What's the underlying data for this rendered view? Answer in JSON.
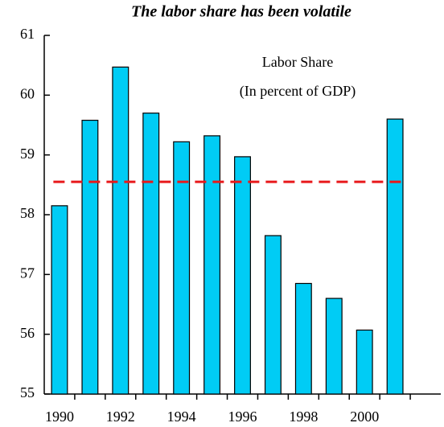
{
  "chart_data": {
    "type": "bar",
    "title": "The labor share has been volatile",
    "annotation": [
      "Labor Share",
      "(In percent of GDP)"
    ],
    "categories": [
      "1990",
      null,
      "1992",
      null,
      "1994",
      null,
      "1996",
      null,
      "1998",
      null,
      "2000",
      null,
      null
    ],
    "values": [
      58.15,
      59.58,
      60.47,
      59.7,
      59.22,
      59.32,
      58.97,
      57.65,
      56.85,
      56.6,
      56.07,
      59.6,
      null
    ],
    "color": "#00ccf5",
    "reference_line": {
      "value": 58.55,
      "color": "#e8191b"
    },
    "ylim": [
      55,
      61
    ],
    "yticks": [
      55,
      56,
      57,
      58,
      59,
      60,
      61
    ]
  }
}
